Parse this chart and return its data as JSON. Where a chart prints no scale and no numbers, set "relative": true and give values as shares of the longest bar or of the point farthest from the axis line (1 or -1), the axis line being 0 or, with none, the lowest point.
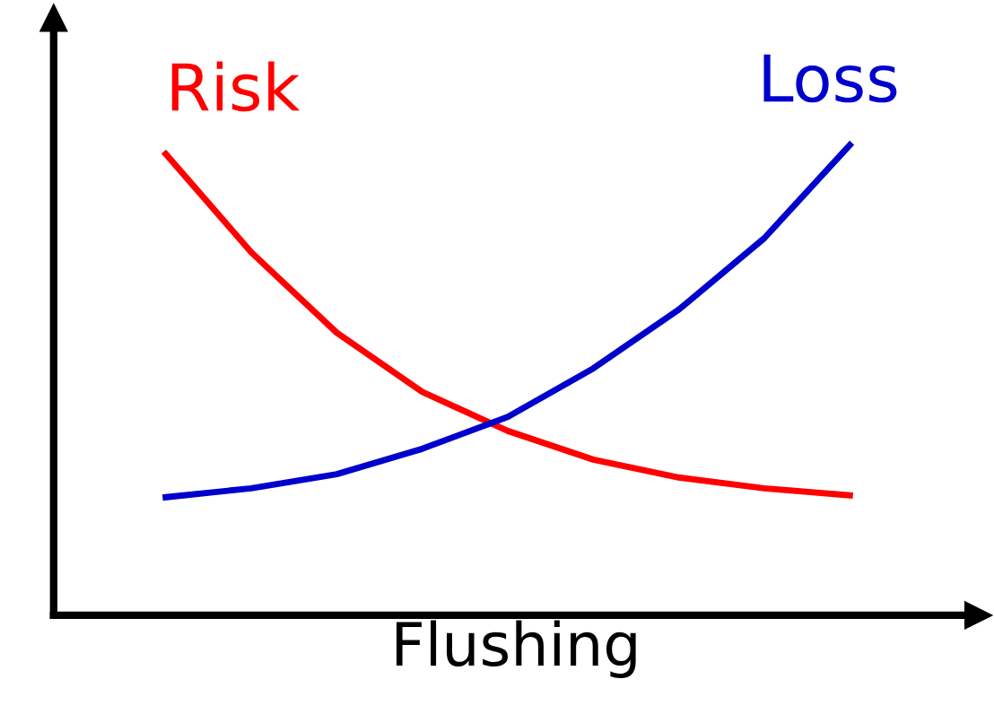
{
  "chart_data": {
    "type": "line",
    "relative": true,
    "xlabel": "Flushing",
    "categories": [
      null,
      null,
      null,
      null,
      null,
      null,
      null,
      null,
      null
    ],
    "series": [
      {
        "name": "Risk",
        "color": "#ff0000",
        "values": [
          0.981,
          0.772,
          0.601,
          0.475,
          0.392,
          0.331,
          0.293,
          0.27,
          0.255
        ]
      },
      {
        "name": "Loss",
        "color": "#0000cc",
        "values": [
          0.251,
          0.27,
          0.3,
          0.354,
          0.422,
          0.525,
          0.65,
          0.802,
          1.0
        ]
      }
    ],
    "grid": false,
    "legend": false,
    "tick_labels": false,
    "marker": "none",
    "line_style": "solid"
  }
}
